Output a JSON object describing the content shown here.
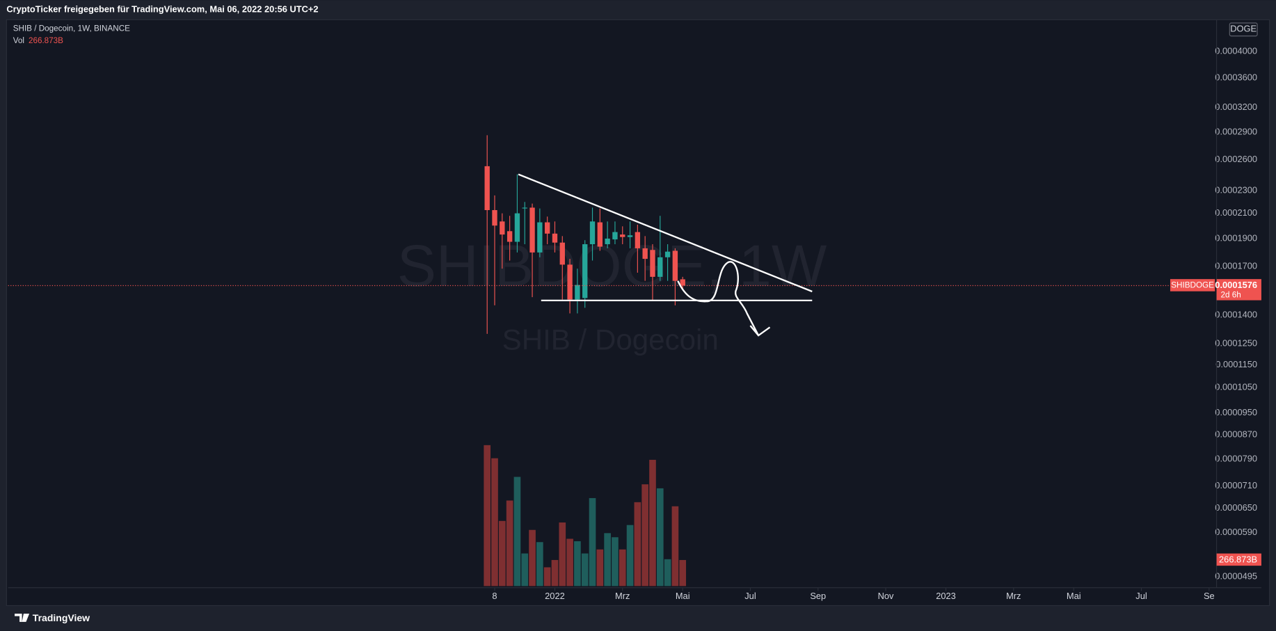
{
  "header": "CryptoTicker freigegeben für TradingView.com, Mai 06, 2022 20:56 UTC+2",
  "footer": "TradingView",
  "chart_data": {
    "type": "candlestick",
    "title": "SHIB / Dogecoin, 1W, BINANCE",
    "watermark": [
      "SHIBDOGE, 1W",
      "SHIB / Dogecoin"
    ],
    "symbol_tag": "SHIBDOGE",
    "countdown": "2d 6h",
    "compare_label": "DOGE",
    "up_color": "#26a69a",
    "down_color": "#ef5350",
    "log_scale": true,
    "grid": false,
    "x": [
      0,
      1,
      2,
      3,
      4,
      5,
      6,
      7,
      8,
      9,
      10,
      11,
      12,
      13,
      14,
      15,
      16,
      17,
      18,
      19,
      20,
      21,
      22,
      23,
      24,
      25,
      26
    ],
    "xlim": [
      -63.7,
      97
    ],
    "xticks": [
      {
        "value": 1,
        "label": "8"
      },
      {
        "value": 9,
        "label": "2022"
      },
      {
        "value": 18,
        "label": "Mrz"
      },
      {
        "value": 26,
        "label": "Mai"
      },
      {
        "value": 35,
        "label": "Jul"
      },
      {
        "value": 44,
        "label": "Sep"
      },
      {
        "value": 53,
        "label": "Nov"
      },
      {
        "value": 61,
        "label": "2023"
      },
      {
        "value": 70,
        "label": "Mrz"
      },
      {
        "value": 78,
        "label": "Mai"
      },
      {
        "value": 87,
        "label": "Jul"
      },
      {
        "value": 96,
        "label": "Se"
      }
    ],
    "open": [
      0.0002534,
      0.0002128,
      0.0002034,
      0.0001957,
      0.0001876,
      0.0002149,
      0.0002149,
      0.0001798,
      0.0002027,
      0.0001938,
      0.000187,
      0.0001713,
      0.0001491,
      0.00015,
      0.0001858,
      0.0002027,
      0.0001858,
      0.0001894,
      0.0001931,
      0.0001912,
      0.000195,
      0.0001828,
      0.0001816,
      0.0001632,
      0.0001764,
      0.000181,
      0.0001616
    ],
    "high": [
      0.0002866,
      0.0002256,
      0.0002101,
      0.000208,
      0.0002454,
      0.0002198,
      0.0002184,
      0.0002142,
      0.0002074,
      0.0002034,
      0.0001919,
      0.0001753,
      0.0001686,
      0.0001888,
      0.0002149,
      0.0002142,
      0.0002034,
      0.0002034,
      0.0001995,
      0.0002034,
      0.0002008,
      0.0001919,
      0.0001858,
      0.000208,
      0.0001858,
      0.0001828,
      0.0001632
    ],
    "low": [
      0.0001301,
      0.0001457,
      0.0001686,
      0.0001741,
      0.0001798,
      0.0001858,
      0.0001505,
      0.0001764,
      0.0001858,
      0.0001798,
      0.0001491,
      0.0001411,
      0.0001411,
      0.0001443,
      0.0001741,
      0.000181,
      0.0001828,
      0.0001858,
      0.0001858,
      0.0001828,
      0.0001659,
      0.0001606,
      0.0001481,
      0.0001606,
      0.0001606,
      0.0001457,
      0.000155
    ],
    "close": [
      0.0002128,
      0.0002001,
      0.0001931,
      0.0001876,
      0.0002101,
      0.0002149,
      0.0001798,
      0.0002027,
      0.0001938,
      0.000187,
      0.0001713,
      0.0001491,
      0.000158,
      0.0001858,
      0.0002034,
      0.000184,
      0.00019,
      0.000195,
      0.0001912,
      0.0001925,
      0.0001828,
      0.0001753,
      0.0001632,
      0.0001764,
      0.0001804,
      0.0001606,
      0.0001576
    ],
    "ylim": [
      4.77e-05,
      0.0004538
    ],
    "yticks": [
      {
        "value": 0.0004,
        "label": "0.0004000"
      },
      {
        "value": 0.00036,
        "label": "0.0003600"
      },
      {
        "value": 0.00032,
        "label": "0.0003200"
      },
      {
        "value": 0.00029,
        "label": "0.0002900"
      },
      {
        "value": 0.00026,
        "label": "0.0002600"
      },
      {
        "value": 0.00023,
        "label": "0.0002300"
      },
      {
        "value": 0.00021,
        "label": "0.0002100"
      },
      {
        "value": 0.00019,
        "label": "0.0001900"
      },
      {
        "value": 0.00017,
        "label": "0.0001700"
      },
      {
        "value": 0.00014,
        "label": "0.0001400"
      },
      {
        "value": 0.000125,
        "label": "0.0001250"
      },
      {
        "value": 0.000115,
        "label": "0.0001150"
      },
      {
        "value": 0.000105,
        "label": "0.0001050"
      },
      {
        "value": 9.5e-05,
        "label": "0.0000950"
      },
      {
        "value": 8.7e-05,
        "label": "0.0000870"
      },
      {
        "value": 7.9e-05,
        "label": "0.0000790"
      },
      {
        "value": 7.1e-05,
        "label": "0.0000710"
      },
      {
        "value": 6.5e-05,
        "label": "0.0000650"
      },
      {
        "value": 5.9e-05,
        "label": "0.0000590"
      },
      {
        "value": 4.95e-05,
        "label": "0.0000495"
      }
    ],
    "volume": {
      "name": "Vol",
      "up_color": "#1f5e5c",
      "down_color": "#7f2f31",
      "values": [
        1443,
        1309,
        667,
        876,
        1118,
        334,
        575,
        450,
        192,
        267,
        651,
        484,
        459,
        334,
        901,
        375,
        542,
        500,
        375,
        625,
        859,
        1042,
        1293,
        1001,
        275,
        817,
        266.873
      ],
      "last_label": "266.873B",
      "ylim": [
        0,
        1500
      ]
    }
  }
}
